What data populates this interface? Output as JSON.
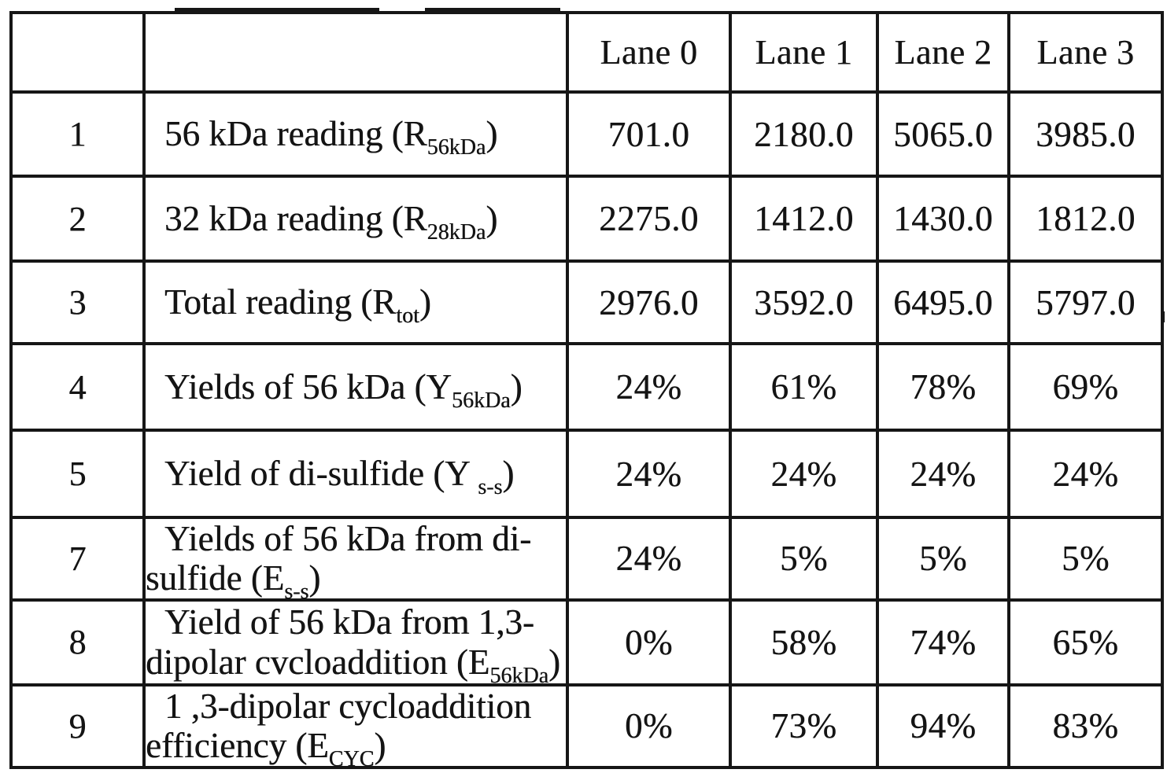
{
  "page": {
    "background_color": "#ffffff",
    "ink_color": "#141414",
    "border_color": "#161616"
  },
  "table": {
    "header": {
      "lanes": [
        "Lane 0",
        "Lane 1",
        "Lane 2",
        "Lane 3"
      ]
    },
    "rows": [
      {
        "num": "1",
        "label": [
          {
            "t": "56 kDa reading (R"
          },
          {
            "t": "56kDa",
            "sub": true
          },
          {
            "t": ")"
          }
        ],
        "values": [
          "701.0",
          "2180.0",
          "5065.0",
          "3985.0"
        ]
      },
      {
        "num": "2",
        "label": [
          {
            "t": "32 kDa reading (R"
          },
          {
            "t": "28kDa",
            "sub": true
          },
          {
            "t": ")"
          }
        ],
        "values": [
          "2275.0",
          "1412.0",
          "1430.0",
          "1812.0"
        ]
      },
      {
        "num": "3",
        "label": [
          {
            "t": "Total reading (R"
          },
          {
            "t": "tot",
            "sub": true
          },
          {
            "t": ")"
          }
        ],
        "values": [
          "2976.0",
          "3592.0",
          "6495.0",
          "5797.0"
        ]
      },
      {
        "num": "4",
        "label": [
          {
            "t": "Yields of 56 kDa (Y"
          },
          {
            "t": "56kDa",
            "sub": true
          },
          {
            "t": ")"
          }
        ],
        "values": [
          "24%",
          "61%",
          "78%",
          "69%"
        ]
      },
      {
        "num": "5",
        "label": [
          {
            "t": "Yield of di-sulfide (Y "
          },
          {
            "t": "s-s",
            "sub": true
          },
          {
            "t": ")"
          }
        ],
        "values": [
          "24%",
          "24%",
          "24%",
          "24%"
        ]
      },
      {
        "num": "7",
        "label": [
          {
            "t": "Yields of 56 kDa from di-"
          },
          {
            "br": true
          },
          {
            "t": "sulfide (E"
          },
          {
            "t": "s-s",
            "sub": true
          },
          {
            "t": ")"
          }
        ],
        "values": [
          "24%",
          "5%",
          "5%",
          "5%"
        ]
      },
      {
        "num": "8",
        "label": [
          {
            "t": "Yield of 56 kDa from 1,3-"
          },
          {
            "br": true
          },
          {
            "t": "dipolar cvcloaddition (E"
          },
          {
            "t": "56kDa",
            "sub": true
          },
          {
            "t": ")"
          }
        ],
        "values": [
          "0%",
          "58%",
          "74%",
          "65%"
        ]
      },
      {
        "num": "9",
        "label": [
          {
            "t": "1 ,3-dipolar cycloaddition"
          },
          {
            "br": true
          },
          {
            "t": "efficiency (E"
          },
          {
            "t": "CYC",
            "sub": true
          },
          {
            "t": ")"
          }
        ],
        "values": [
          "0%",
          "73%",
          "94%",
          "83%"
        ]
      }
    ]
  }
}
